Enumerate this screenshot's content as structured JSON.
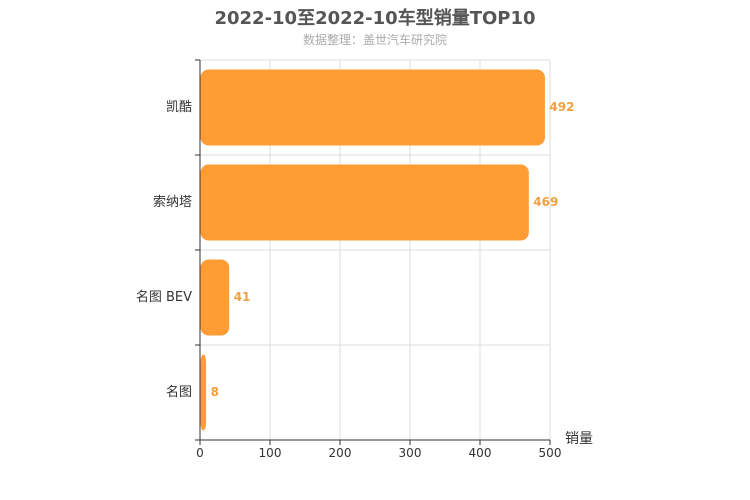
{
  "chart_data": {
    "type": "bar",
    "orientation": "horizontal",
    "title": "2022-10至2022-10车型销量TOP10",
    "subtitle": "数据整理：盖世汽车研究院",
    "xlabel": "销量",
    "ylabel": "",
    "categories": [
      "凯酷",
      "索纳塔",
      "名图 BEV",
      "名图"
    ],
    "values": [
      492,
      469,
      41,
      8
    ],
    "xlim": [
      0,
      500
    ],
    "xticks": [
      "0",
      "100",
      "200",
      "300",
      "400",
      "500"
    ],
    "grid": true,
    "bar_color": "#ff9c33",
    "label_color": "#f0a040"
  }
}
